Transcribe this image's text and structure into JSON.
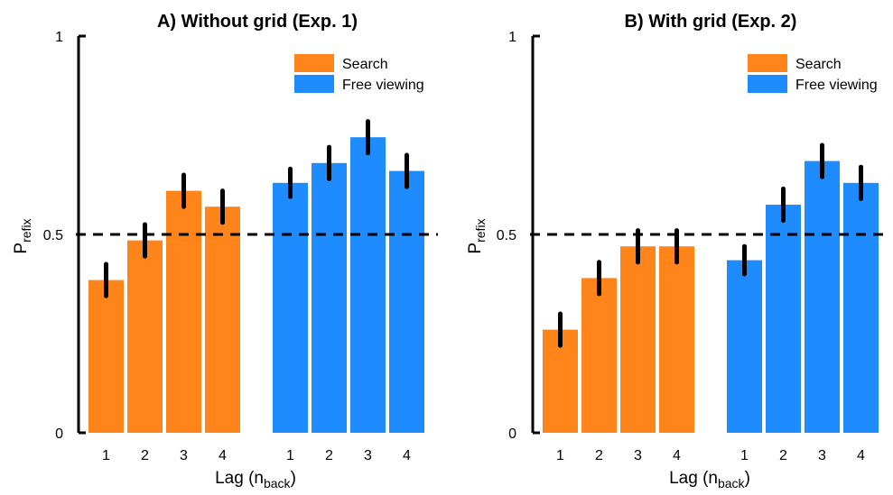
{
  "chart_data": [
    {
      "type": "bar",
      "title": "A) Without grid (Exp. 1)",
      "ylabel": "P",
      "ylabel_sub": "refix",
      "xlabel": "Lag (n",
      "xlabel_sub": "back",
      "xlabel_close": ")",
      "ylim": [
        0,
        1
      ],
      "yticks": [
        {
          "value": 0,
          "label": "0"
        },
        {
          "value": 0.5,
          "label": "0.5"
        },
        {
          "value": 1,
          "label": "1"
        }
      ],
      "reference_line": 0.5,
      "grid": false,
      "legend_position": "top-right",
      "categories": [
        "1",
        "2",
        "3",
        "4"
      ],
      "series": [
        {
          "name": "Search",
          "color": "#FF8419",
          "values": [
            0.385,
            0.485,
            0.61,
            0.57
          ],
          "errors": [
            0.04,
            0.04,
            0.04,
            0.04
          ]
        },
        {
          "name": "Free viewing",
          "color": "#1E8CFF",
          "values": [
            0.63,
            0.68,
            0.745,
            0.66
          ],
          "errors": [
            0.035,
            0.04,
            0.04,
            0.04
          ]
        }
      ]
    },
    {
      "type": "bar",
      "title": "B) With grid (Exp. 2)",
      "ylabel": "P",
      "ylabel_sub": "refix",
      "xlabel": "Lag (n",
      "xlabel_sub": "back",
      "xlabel_close": ")",
      "ylim": [
        0,
        1
      ],
      "yticks": [
        {
          "value": 0,
          "label": "0"
        },
        {
          "value": 0.5,
          "label": "0.5"
        },
        {
          "value": 1,
          "label": "1"
        }
      ],
      "reference_line": 0.5,
      "grid": false,
      "legend_position": "top-right",
      "categories": [
        "1",
        "2",
        "3",
        "4"
      ],
      "series": [
        {
          "name": "Search",
          "color": "#FF8419",
          "values": [
            0.26,
            0.39,
            0.47,
            0.47
          ],
          "errors": [
            0.04,
            0.04,
            0.04,
            0.04
          ]
        },
        {
          "name": "Free viewing",
          "color": "#1E8CFF",
          "values": [
            0.435,
            0.575,
            0.685,
            0.63
          ],
          "errors": [
            0.035,
            0.04,
            0.04,
            0.04
          ]
        }
      ]
    }
  ]
}
